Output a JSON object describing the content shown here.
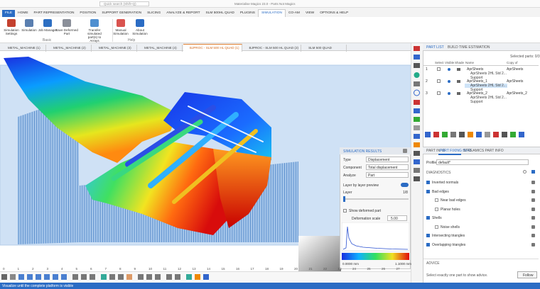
{
  "window": {
    "search": "Quick search (Shift+Q)",
    "title": "Materialise Magics 23.0 - Parts Not Magics"
  },
  "menu": [
    "FILE",
    "HOME",
    "PART REPRESENTATION",
    "POSITION",
    "SUPPORT GENERATION",
    "SLICING",
    "ANALYZE & REPORT",
    "SLM 500HL QUAD",
    "PLUGINS",
    "SIMULATION",
    "CO-AM",
    "VIEW",
    "OPTIONS & HELP"
  ],
  "ribbon": {
    "buttons": [
      "Simulation Settings",
      "Simulation",
      "Job Manager",
      "Save Deformed Part",
      "Transfer simulated part(s) to Arrays",
      "Manual Simulation",
      "About Simulation"
    ],
    "groups": [
      "Basic",
      "Help"
    ]
  },
  "document_tabs": [
    "METAL_MACHINE (1)",
    "METAL_MACHINE (2)",
    "METAL_MACHINE (3)",
    "METAL_MACHINE (4)",
    "BJPROC - SLM 500 HL QUAD (1)",
    "BJPROC - SLM 500 HL QUAD (2)",
    "SLM 500 QUAD"
  ],
  "simulation_results": {
    "title": "SIMULATION RESULTS",
    "fields": [
      {
        "label": "Type",
        "value": "Displacement"
      },
      {
        "label": "Component",
        "value": "Total displacement"
      },
      {
        "label": "Analyze",
        "value": "Part"
      }
    ],
    "layer_preview": "Layer by layer preview",
    "layer": "Layer",
    "layer_value": "1/8",
    "show_deformed": "Show deformed part",
    "deformation_scale_label": "Deformation scale",
    "deformation_scale": "5.00",
    "legend_min": "0.0000 mm",
    "legend_max": "1.1000 mm"
  },
  "ruler": [
    "0",
    "1",
    "2",
    "3",
    "4",
    "5",
    "6",
    "7",
    "8",
    "9",
    "10",
    "11",
    "12",
    "13",
    "14",
    "15",
    "16",
    "17",
    "18",
    "19",
    "20",
    "21",
    "22",
    "23",
    "24",
    "25",
    "26",
    "27"
  ],
  "part_list": {
    "tabs": [
      "PART LIST",
      "BUILD TIME ESTIMATION"
    ],
    "selected": "Selected parts: 0/3",
    "columns": [
      "Select",
      "Visible",
      "Shade",
      "Name",
      "Copy of"
    ],
    "rows": [
      {
        "index": "1",
        "name": "AprSheets",
        "copy_of": "AprSheets",
        "children": [
          "AprSheets 2HL Std 2...",
          "Support"
        ]
      },
      {
        "index": "2",
        "name": "AprSheets_1",
        "copy_of": "AprSheets",
        "children": [
          "AprSheets 2HL Std 2...",
          "Support"
        ]
      },
      {
        "index": "3",
        "name": "AprSheets_2",
        "copy_of": "AprSheets_2",
        "children": [
          "AprSheets 2HL Std 2...",
          "Support"
        ]
      }
    ]
  },
  "part_info": {
    "tabs": [
      "PART INFO",
      "PART FIXING INFO",
      "STREAMICS PART INFO"
    ],
    "profile_label": "Profile",
    "profile": "default*",
    "section": "DIAGNOSTICS",
    "checks": [
      {
        "label": "Inverted normals"
      },
      {
        "label": "Bad edges",
        "sub": [
          "Near bad edges",
          "Planar holes"
        ]
      },
      {
        "label": "Shells",
        "sub": [
          "Noise shells"
        ]
      },
      {
        "label": "Intersecting triangles"
      },
      {
        "label": "Overlapping triangles"
      }
    ],
    "advice_title": "ADVICE",
    "advice": "Select exactly one part to show advice.",
    "follow": "Follow"
  },
  "status": "Visualize until the complete platform is visible"
}
